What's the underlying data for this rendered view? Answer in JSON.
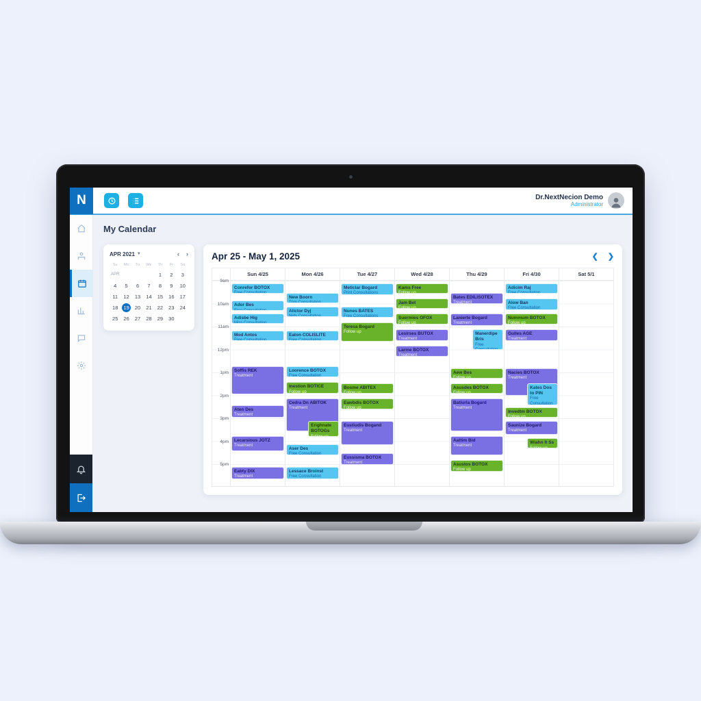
{
  "accent_colors": {
    "primary_blue": "#1070c0",
    "toolbar_cyan": "#1cb0e4",
    "topbar_underline": "#45a7dc"
  },
  "event_colors": {
    "cyan": "#55c6f0",
    "green": "#69b32b",
    "purple": "#7b6fe4"
  },
  "topbar": {
    "logo": "N",
    "icons": [
      "history-icon",
      "list-icon"
    ],
    "user_name": "Dr.NextNecion Demo",
    "user_role": "Administrator"
  },
  "sidebar": {
    "icons": [
      "home-icon",
      "patients-icon",
      "calendar-icon",
      "reports-icon",
      "chat-icon",
      "settings-icon"
    ],
    "active": "calendar-icon",
    "bottom_icons": [
      "bell-icon",
      "logout-icon"
    ]
  },
  "page_title": "My Calendar",
  "mini_calendar": {
    "header": "APR 2021",
    "weekdays": [
      "Su",
      "Mo",
      "Tu",
      "We",
      "Th",
      "Fr",
      "Sa"
    ],
    "rows": [
      [
        "APR",
        "",
        "",
        "",
        "1",
        "2",
        "3"
      ],
      [
        "4",
        "5",
        "6",
        "7",
        "8",
        "9",
        "10"
      ],
      [
        "11",
        "12",
        "13",
        "14",
        "15",
        "16",
        "17"
      ],
      [
        "18",
        "19",
        "20",
        "21",
        "22",
        "23",
        "24"
      ],
      [
        "25",
        "26",
        "27",
        "28",
        "29",
        "30",
        ""
      ]
    ],
    "selected_day": "19",
    "nav": {
      "prev": "‹",
      "next": "›"
    }
  },
  "week": {
    "title": "Apr 25 - May 1, 2025",
    "nav": {
      "prev": "❮",
      "next": "❯"
    },
    "days": [
      "Sun 4/25",
      "Mon 4/26",
      "Tue 4/27",
      "Wed 4/28",
      "Thu 4/29",
      "Fri 4/30",
      "Sat 5/1"
    ],
    "times": [
      "9am",
      "10am",
      "11am",
      "12pm",
      "1pm",
      "2pm",
      "3pm",
      "4pm",
      "5pm"
    ],
    "events": [
      {
        "day": 0,
        "start": 9.1,
        "end": 9.6,
        "color": "cyan",
        "title": "Conrefor BOTOX",
        "sub": "Free Consultation"
      },
      {
        "day": 0,
        "start": 9.85,
        "end": 10.35,
        "color": "cyan",
        "title": "Ador Bes",
        "sub": "Free Consultation"
      },
      {
        "day": 0,
        "start": 10.4,
        "end": 10.9,
        "color": "cyan",
        "title": "Adisbe Hig",
        "sub": "Miss Consultation"
      },
      {
        "day": 0,
        "start": 11.15,
        "end": 11.65,
        "color": "cyan",
        "title": "Mod Antos",
        "sub": "Free Consultation"
      },
      {
        "day": 0,
        "start": 12.7,
        "end": 14.0,
        "color": "purple",
        "title": "Soffis REK",
        "sub": "Treatment"
      },
      {
        "day": 0,
        "start": 14.4,
        "end": 15.0,
        "color": "purple",
        "title": "Aten Des",
        "sub": "Treatment"
      },
      {
        "day": 0,
        "start": 15.75,
        "end": 16.45,
        "color": "purple",
        "title": "Lecarsious JOTZ",
        "sub": "Treatment"
      },
      {
        "day": 0,
        "start": 17.1,
        "end": 17.7,
        "color": "purple",
        "title": "Eabty DIX",
        "sub": "Treatment"
      },
      {
        "day": 1,
        "start": 9.5,
        "end": 10.0,
        "color": "cyan",
        "title": "New Boorn",
        "sub": "Trim Consultation"
      },
      {
        "day": 1,
        "start": 10.1,
        "end": 10.6,
        "color": "cyan",
        "title": "Alictor Dyj",
        "sub": "Nids Consultation"
      },
      {
        "day": 1,
        "start": 11.15,
        "end": 11.65,
        "color": "cyan",
        "title": "Eaton COLISLITE",
        "sub": "Free Consultation"
      },
      {
        "day": 1,
        "start": 12.7,
        "end": 13.25,
        "color": "cyan",
        "title": "Loorence BOTOX",
        "sub": "Free Consultation"
      },
      {
        "day": 1,
        "start": 13.4,
        "end": 13.95,
        "color": "green",
        "title": "Inestion BOTICE",
        "sub": "Follow up"
      },
      {
        "day": 1,
        "start": 14.1,
        "end": 15.6,
        "color": "purple",
        "title": "Cedra Dn ABITOK",
        "sub": "Treatment"
      },
      {
        "day": 1,
        "start": 15.1,
        "end": 15.85,
        "color": "green",
        "title": "Erighnate BOTOGs",
        "sub": "Follow up",
        "pos": "right"
      },
      {
        "day": 1,
        "start": 16.1,
        "end": 16.65,
        "color": "cyan",
        "title": "Aser Des",
        "sub": "Free Consultation"
      },
      {
        "day": 1,
        "start": 17.1,
        "end": 17.7,
        "color": "cyan",
        "title": "Lessace Broinst",
        "sub": "Free Consultation"
      },
      {
        "day": 2,
        "start": 9.1,
        "end": 9.65,
        "color": "cyan",
        "title": "Meticlar Bogard",
        "sub": "Print Consultations"
      },
      {
        "day": 2,
        "start": 10.1,
        "end": 10.65,
        "color": "cyan",
        "title": "Nunes BATES",
        "sub": "Free Consultations"
      },
      {
        "day": 2,
        "start": 10.8,
        "end": 11.7,
        "color": "green",
        "title": "Teresa Bogard",
        "sub": "Follow up"
      },
      {
        "day": 2,
        "start": 13.45,
        "end": 13.95,
        "color": "green",
        "title": "Bosme ABITEX",
        "sub": "Follow up"
      },
      {
        "day": 2,
        "start": 14.1,
        "end": 14.65,
        "color": "green",
        "title": "Eawbdis BOTOX",
        "sub": "Follow up"
      },
      {
        "day": 2,
        "start": 15.1,
        "end": 16.2,
        "color": "purple",
        "title": "Eustiudis Bogand",
        "sub": "Treatment"
      },
      {
        "day": 2,
        "start": 16.5,
        "end": 17.05,
        "color": "purple",
        "title": "Eussisma BOTOX",
        "sub": "Treatment"
      },
      {
        "day": 3,
        "start": 9.1,
        "end": 9.6,
        "color": "green",
        "title": "Kams Free",
        "sub": "Follow up"
      },
      {
        "day": 3,
        "start": 9.75,
        "end": 10.25,
        "color": "green",
        "title": "Jam Bet",
        "sub": "Follow up"
      },
      {
        "day": 3,
        "start": 10.4,
        "end": 10.95,
        "color": "green",
        "title": "Suermies OFOX",
        "sub": "Follow up"
      },
      {
        "day": 3,
        "start": 11.1,
        "end": 11.65,
        "color": "purple",
        "title": "Lesirses BUTOX",
        "sub": "Treatment"
      },
      {
        "day": 3,
        "start": 11.8,
        "end": 12.35,
        "color": "purple",
        "title": "Larme BOTOX",
        "sub": "Treatment"
      },
      {
        "day": 4,
        "start": 9.5,
        "end": 10.05,
        "color": "purple",
        "title": "Bates EDILISOTEX",
        "sub": "Treatment"
      },
      {
        "day": 4,
        "start": 10.4,
        "end": 11.0,
        "color": "purple",
        "title": "Lanierte Bogard",
        "sub": "Treatment"
      },
      {
        "day": 4,
        "start": 11.1,
        "end": 12.05,
        "color": "cyan",
        "title": "Manerdipe Bris",
        "sub": "Free Consultation",
        "pos": "right"
      },
      {
        "day": 4,
        "start": 12.8,
        "end": 13.3,
        "color": "green",
        "title": "Aew Bes",
        "sub": "Follow up"
      },
      {
        "day": 4,
        "start": 13.45,
        "end": 13.95,
        "color": "green",
        "title": "Asusdes BOTOX",
        "sub": "Follow up"
      },
      {
        "day": 4,
        "start": 14.1,
        "end": 15.6,
        "color": "purple",
        "title": "Batiurla Bogard",
        "sub": "Treatment"
      },
      {
        "day": 4,
        "start": 15.75,
        "end": 16.65,
        "color": "purple",
        "title": "Aattim Bid",
        "sub": "Treatment"
      },
      {
        "day": 4,
        "start": 16.8,
        "end": 17.35,
        "color": "green",
        "title": "Asustos BOTOX",
        "sub": "Follow up"
      },
      {
        "day": 5,
        "start": 9.1,
        "end": 9.6,
        "color": "cyan",
        "title": "Adicim Raj",
        "sub": "Free Consultation"
      },
      {
        "day": 5,
        "start": 9.75,
        "end": 10.3,
        "color": "cyan",
        "title": "Alow Ban",
        "sub": "Free Consultation"
      },
      {
        "day": 5,
        "start": 10.4,
        "end": 10.95,
        "color": "green",
        "title": "Nummum BOTOX",
        "sub": "Follow up"
      },
      {
        "day": 5,
        "start": 11.1,
        "end": 11.65,
        "color": "purple",
        "title": "Gulles AGE",
        "sub": "Treatment"
      },
      {
        "day": 5,
        "start": 12.8,
        "end": 14.05,
        "color": "purple",
        "title": "Nacies BOTOX",
        "sub": "Treatment"
      },
      {
        "day": 5,
        "start": 13.45,
        "end": 14.45,
        "color": "cyan",
        "title": "Kates Dos to PIN",
        "sub": "Free Consultation",
        "pos": "right"
      },
      {
        "day": 5,
        "start": 14.5,
        "end": 15.0,
        "color": "green",
        "title": "Invedtm BOTOX",
        "sub": "Follow up"
      },
      {
        "day": 5,
        "start": 15.1,
        "end": 15.75,
        "color": "purple",
        "title": "Saunize Bogard",
        "sub": "Treatment"
      },
      {
        "day": 5,
        "start": 15.85,
        "end": 16.35,
        "color": "green",
        "title": "Wiahn It Ss",
        "sub": "Follow up",
        "pos": "right"
      }
    ]
  }
}
